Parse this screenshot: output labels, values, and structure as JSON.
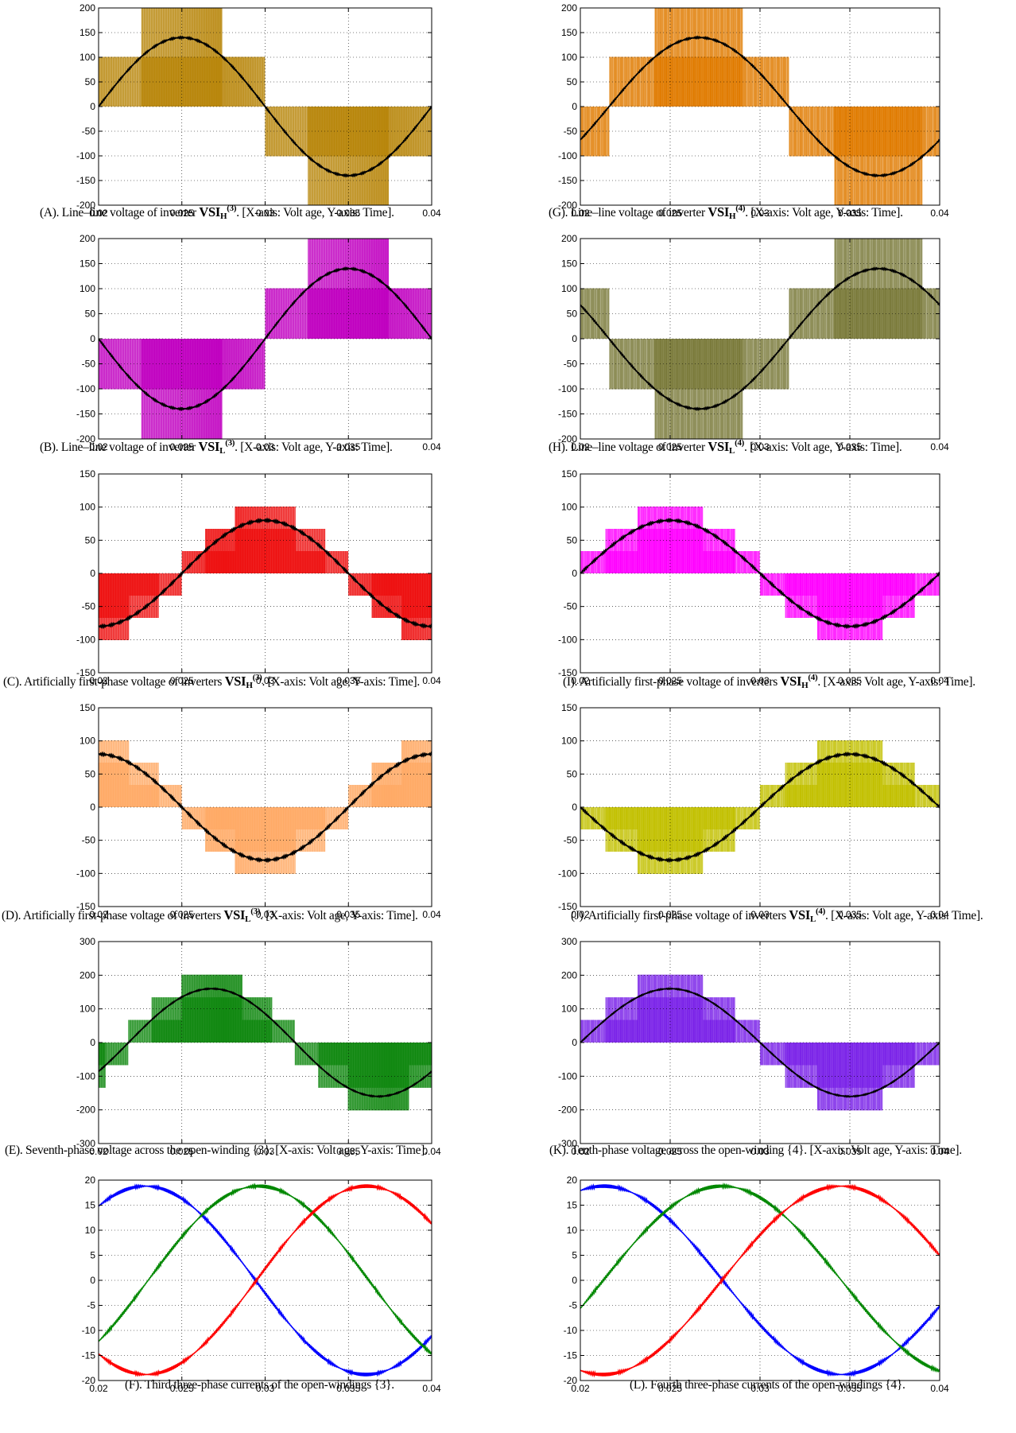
{
  "chart_data": [
    {
      "id": "A",
      "type": "line",
      "signal": "pwm",
      "phase": 0,
      "amplitude": 140,
      "levels": 2,
      "period": 0.02,
      "color": "#b8860b",
      "xlim": [
        0.02,
        0.04
      ],
      "ylim": [
        -200,
        200
      ],
      "xticks": [
        0.02,
        0.025,
        0.03,
        0.035,
        0.04
      ],
      "yticks": [
        -200,
        -150,
        -100,
        -50,
        0,
        50,
        100,
        150,
        200
      ],
      "xtick_labels": [
        "0.02",
        "0.025",
        "0.03",
        "0.035",
        "0.04"
      ],
      "ytick_labels": [
        "-200",
        "-150",
        "-100",
        "-50",
        "0",
        "50",
        "100",
        "150",
        "200"
      ],
      "grid": true,
      "caption": {
        "pre": "(A). Line–line voltage of inverter ",
        "vsi": "VSI",
        "sub": "H",
        "sup": "(3)",
        "post": ". [X-axis: Volt age, Y-axis: Time]."
      }
    },
    {
      "id": "G",
      "type": "line",
      "signal": "pwm",
      "phase": 0.0016,
      "amplitude": 140,
      "levels": 2,
      "period": 0.02,
      "color": "#e07b00",
      "xlim": [
        0.02,
        0.04
      ],
      "ylim": [
        -200,
        200
      ],
      "xticks": [
        0.02,
        0.025,
        0.03,
        0.035,
        0.04
      ],
      "yticks": [
        -200,
        -150,
        -100,
        -50,
        0,
        50,
        100,
        150,
        200
      ],
      "xtick_labels": [
        "0.02",
        "0.025",
        "0.03",
        "0.035",
        "0.04"
      ],
      "ytick_labels": [
        "-200",
        "-150",
        "-100",
        "-50",
        "0",
        "50",
        "100",
        "150",
        "200"
      ],
      "grid": true,
      "caption": {
        "pre": "(G). Line–line voltage of  inverter ",
        "vsi": "VSI",
        "sub": "H",
        "sup": "(4)",
        "post": ". [X-axis: Volt age, Y-axis: Time]."
      }
    },
    {
      "id": "B",
      "type": "line",
      "signal": "pwm",
      "phase": 0.01,
      "amplitude": 140,
      "levels": 2,
      "period": 0.02,
      "color": "#c000c0",
      "xlim": [
        0.02,
        0.04
      ],
      "ylim": [
        -200,
        200
      ],
      "xticks": [
        0.02,
        0.025,
        0.03,
        0.035,
        0.04
      ],
      "yticks": [
        -200,
        -150,
        -100,
        -50,
        0,
        50,
        100,
        150,
        200
      ],
      "xtick_labels": [
        "0.02",
        "0.025",
        "0.03",
        "0.035",
        "0.04"
      ],
      "ytick_labels": [
        "-200",
        "-150",
        "-100",
        "-50",
        "0",
        "50",
        "100",
        "150",
        "200"
      ],
      "grid": true,
      "caption": {
        "pre": "(B). Line–line voltage of inverter ",
        "vsi": "VSI",
        "sub": "L",
        "sup": "(3)",
        "post": ". [X-axis: Volt age, Y-axis: Time]."
      }
    },
    {
      "id": "H",
      "type": "line",
      "signal": "pwm",
      "phase": 0.0116,
      "amplitude": 140,
      "levels": 2,
      "period": 0.02,
      "color": "#7a7a3a",
      "xlim": [
        0.02,
        0.04
      ],
      "ylim": [
        -200,
        200
      ],
      "xticks": [
        0.02,
        0.025,
        0.03,
        0.035,
        0.04
      ],
      "yticks": [
        -200,
        -150,
        -100,
        -50,
        0,
        50,
        100,
        150,
        200
      ],
      "xtick_labels": [
        "0.02",
        "0.025",
        "0.03",
        "0.035",
        "0.04"
      ],
      "ytick_labels": [
        "-200",
        "-150",
        "-100",
        "-50",
        "0",
        "50",
        "100",
        "150",
        "200"
      ],
      "grid": true,
      "caption": {
        "pre": "(H). Line–line voltage of inverter ",
        "vsi": "VSI",
        "sub": "L",
        "sup": "(4)",
        "post": ". [X-axis: Volt age, Y-axis: Time]."
      }
    },
    {
      "id": "C",
      "type": "line",
      "signal": "pwm",
      "phase": 0.005,
      "amplitude": 80,
      "levels": 4,
      "period": 0.02,
      "color": "#ee1111",
      "xlim": [
        0.02,
        0.04
      ],
      "ylim": [
        -150,
        150
      ],
      "xticks": [
        0.02,
        0.025,
        0.03,
        0.035,
        0.04
      ],
      "yticks": [
        -150,
        -100,
        -50,
        0,
        50,
        100,
        150
      ],
      "xtick_labels": [
        "0.02",
        "0.025",
        "0.03",
        "0.035",
        "0.04"
      ],
      "ytick_labels": [
        "-150",
        "-100",
        "-50",
        "0",
        "50",
        "100",
        "150"
      ],
      "grid": true,
      "caption": {
        "pre": "(C).  Artificially first-phase voltage of inverters ",
        "vsi": "VSI",
        "sub": "H",
        "sup": "(3)",
        "post": ". [X-axis: Volt age, Y-axis: Time]."
      }
    },
    {
      "id": "I",
      "type": "line",
      "signal": "pwm",
      "phase": 0,
      "amplitude": 80,
      "levels": 4,
      "period": 0.02,
      "color": "#ff00ff",
      "xlim": [
        0.02,
        0.04
      ],
      "ylim": [
        -150,
        150
      ],
      "xticks": [
        0.02,
        0.025,
        0.03,
        0.035,
        0.04
      ],
      "yticks": [
        -150,
        -100,
        -50,
        0,
        50,
        100,
        150
      ],
      "xtick_labels": [
        "0.02",
        "0.025",
        "0.03",
        "0.035",
        "0.04"
      ],
      "ytick_labels": [
        "-150",
        "-100",
        "-50",
        "0",
        "50",
        "100",
        "150"
      ],
      "grid": true,
      "caption": {
        "pre": "(I).  Artificially first-phase voltage of inverters ",
        "vsi": "VSI",
        "sub": "H",
        "sup": "(4)",
        "post": ".  [X-axis: Volt age, Y-axis: Time]."
      }
    },
    {
      "id": "D",
      "type": "line",
      "signal": "pwm",
      "phase": 0.015,
      "amplitude": 80,
      "levels": 4,
      "period": 0.02,
      "color": "#ffaa66",
      "xlim": [
        0.02,
        0.04
      ],
      "ylim": [
        -150,
        150
      ],
      "xticks": [
        0.02,
        0.025,
        0.03,
        0.035,
        0.04
      ],
      "yticks": [
        -150,
        -100,
        -50,
        0,
        50,
        100,
        150
      ],
      "xtick_labels": [
        "0.02",
        "0.025",
        "0.03",
        "0.035",
        "0.04"
      ],
      "ytick_labels": [
        "-150",
        "-100",
        "-50",
        "0",
        "50",
        "100",
        "150"
      ],
      "grid": true,
      "caption": {
        "pre": "(D).  Artificially first-phase voltage of inverters ",
        "vsi": "VSI",
        "sub": "L",
        "sup": "(3)",
        "post": ".  [X-axis: Volt age, Y-axis: Time]."
      }
    },
    {
      "id": "J",
      "type": "line",
      "signal": "pwm",
      "phase": 0.01,
      "amplitude": 80,
      "levels": 4,
      "period": 0.02,
      "color": "#c2c000",
      "xlim": [
        0.02,
        0.04
      ],
      "ylim": [
        -150,
        150
      ],
      "xticks": [
        0.02,
        0.025,
        0.03,
        0.035,
        0.04
      ],
      "yticks": [
        -150,
        -100,
        -50,
        0,
        50,
        100,
        150
      ],
      "xtick_labels": [
        "0.02",
        "0.025",
        "0.03",
        "0.035",
        "0.04"
      ],
      "ytick_labels": [
        "-150",
        "-100",
        "-50",
        "0",
        "50",
        "100",
        "150"
      ],
      "grid": true,
      "caption": {
        "pre": "(J).  Artificially first-phase voltage of inverters ",
        "vsi": "VSI",
        "sub": "L",
        "sup": "(4)",
        "post": ".  [X-axis: Volt age, Y-axis: Time]."
      }
    },
    {
      "id": "E",
      "type": "line",
      "signal": "pwm",
      "phase": 0.0018,
      "amplitude": 160,
      "levels": 4,
      "period": 0.02,
      "color": "#118811",
      "xlim": [
        0.02,
        0.04
      ],
      "ylim": [
        -300,
        300
      ],
      "xticks": [
        0.02,
        0.025,
        0.03,
        0.035,
        0.04
      ],
      "yticks": [
        -300,
        -200,
        -100,
        0,
        100,
        200,
        300
      ],
      "xtick_labels": [
        "0.02",
        "0.025",
        "0.03",
        "0.035",
        "0.04"
      ],
      "ytick_labels": [
        "-300",
        "-200",
        "-100",
        "0",
        "100",
        "200",
        "300"
      ],
      "grid": true,
      "caption": {
        "pre": "(E). Seventh-phase voltage across the open-winding  {3}.  [X-axis: Volt age, Y-axis: Time].",
        "vsi": "",
        "sub": "",
        "sup": "",
        "post": ""
      }
    },
    {
      "id": "K",
      "type": "line",
      "signal": "pwm",
      "phase": 0,
      "amplitude": 160,
      "levels": 4,
      "period": 0.02,
      "color": "#7a22e8",
      "xlim": [
        0.02,
        0.04
      ],
      "ylim": [
        -300,
        300
      ],
      "xticks": [
        0.02,
        0.025,
        0.03,
        0.035,
        0.04
      ],
      "yticks": [
        -300,
        -200,
        -100,
        0,
        100,
        200,
        300
      ],
      "xtick_labels": [
        "0.02",
        "0.025",
        "0.03",
        "0.035",
        "0.04"
      ],
      "ytick_labels": [
        "-300",
        "-200",
        "-100",
        "0",
        "100",
        "200",
        "300"
      ],
      "grid": true,
      "caption": {
        "pre": "(K). Tenth-phase voltage across the open-winding {4}.  [X-axis: Volt age, Y-axis: Time].",
        "vsi": "",
        "sub": "",
        "sup": "",
        "post": ""
      }
    },
    {
      "id": "F",
      "type": "line",
      "signal": "three-phase",
      "xlim": [
        0.02,
        0.04
      ],
      "ylim": [
        -20,
        20
      ],
      "xticks": [
        0.02,
        0.025,
        0.03,
        0.035,
        0.04
      ],
      "yticks": [
        -20,
        -15,
        -10,
        -5,
        0,
        5,
        10,
        15,
        20
      ],
      "xtick_labels": [
        "0.02",
        "0.025",
        "0.03",
        "0.035",
        "0.04"
      ],
      "ytick_labels": [
        "-20",
        "-15",
        "-10",
        "-5",
        "0",
        "5",
        "10",
        "15",
        "20"
      ],
      "grid": true,
      "series": [
        {
          "color": "#0000ff",
          "amplitude": 18.8,
          "period": 0.0265,
          "peak_x": 0.0228
        },
        {
          "color": "#008800",
          "amplitude": 18.8,
          "period": 0.0265,
          "peak_x": 0.0296
        },
        {
          "color": "#ff0000",
          "amplitude": 18.8,
          "period": 0.0265,
          "peak_x": 0.0361
        }
      ],
      "caption": {
        "pre": "(F).  Third three-phase currents of the open-windings {3}.",
        "vsi": "",
        "sub": "",
        "sup": "",
        "post": ""
      }
    },
    {
      "id": "L",
      "type": "line",
      "signal": "three-phase",
      "xlim": [
        0.02,
        0.04
      ],
      "ylim": [
        -20,
        20
      ],
      "xticks": [
        0.02,
        0.025,
        0.03,
        0.035,
        0.04
      ],
      "yticks": [
        -20,
        -15,
        -10,
        -5,
        0,
        5,
        10,
        15,
        20
      ],
      "xtick_labels": [
        "0.02",
        "0.025",
        "0.03",
        "0.035",
        "0.04"
      ],
      "ytick_labels": [
        "-20",
        "-15",
        "-10",
        "-5",
        "0",
        "5",
        "10",
        "15",
        "20"
      ],
      "grid": true,
      "series": [
        {
          "color": "#0000ff",
          "amplitude": 18.8,
          "period": 0.0265,
          "peak_x": 0.0213
        },
        {
          "color": "#008800",
          "amplitude": 18.8,
          "period": 0.0265,
          "peak_x": 0.0279
        },
        {
          "color": "#ff0000",
          "amplitude": 18.8,
          "period": 0.0265,
          "peak_x": 0.0345
        }
      ],
      "caption": {
        "pre": "(L).  Fourth three-phase currents of the open-windings {4}.",
        "vsi": "",
        "sub": "",
        "sup": "",
        "post": ""
      }
    }
  ]
}
